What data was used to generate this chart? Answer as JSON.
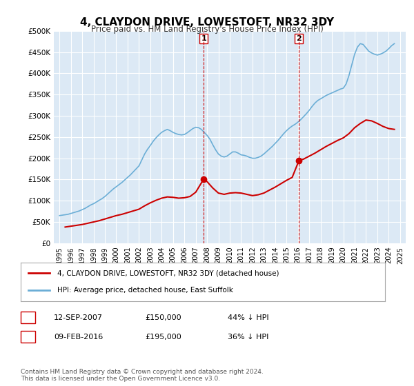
{
  "title": "4, CLAYDON DRIVE, LOWESTOFT, NR32 3DY",
  "subtitle": "Price paid vs. HM Land Registry's House Price Index (HPI)",
  "background_color": "#dce9f5",
  "plot_bg_color": "#dce9f5",
  "outer_bg_color": "#ffffff",
  "ylim": [
    0,
    500000
  ],
  "yticks": [
    0,
    50000,
    100000,
    150000,
    200000,
    250000,
    300000,
    350000,
    400000,
    450000,
    500000
  ],
  "ytick_labels": [
    "£0",
    "£50K",
    "£100K",
    "£150K",
    "£200K",
    "£250K",
    "£300K",
    "£350K",
    "£400K",
    "£450K",
    "£500K"
  ],
  "xlim_start": 1994.5,
  "xlim_end": 2025.5,
  "xticks": [
    1995,
    1996,
    1997,
    1998,
    1999,
    2000,
    2001,
    2002,
    2003,
    2004,
    2005,
    2006,
    2007,
    2008,
    2009,
    2010,
    2011,
    2012,
    2013,
    2014,
    2015,
    2016,
    2017,
    2018,
    2019,
    2020,
    2021,
    2022,
    2023,
    2024,
    2025
  ],
  "hpi_color": "#6baed6",
  "price_color": "#cc0000",
  "marker1_x": 2007.7,
  "marker1_y": 150000,
  "marker2_x": 2016.1,
  "marker2_y": 195000,
  "vline1_x": 2007.7,
  "vline2_x": 2016.1,
  "legend_house_label": "4, CLAYDON DRIVE, LOWESTOFT, NR32 3DY (detached house)",
  "legend_hpi_label": "HPI: Average price, detached house, East Suffolk",
  "annotation1_label": "1",
  "annotation1_date": "12-SEP-2007",
  "annotation1_price": "£150,000",
  "annotation1_pct": "44% ↓ HPI",
  "annotation2_label": "2",
  "annotation2_date": "09-FEB-2016",
  "annotation2_price": "£195,000",
  "annotation2_pct": "36% ↓ HPI",
  "footer": "Contains HM Land Registry data © Crown copyright and database right 2024.\nThis data is licensed under the Open Government Licence v3.0.",
  "hpi_data_x": [
    1995.0,
    1995.25,
    1995.5,
    1995.75,
    1996.0,
    1996.25,
    1996.5,
    1996.75,
    1997.0,
    1997.25,
    1997.5,
    1997.75,
    1998.0,
    1998.25,
    1998.5,
    1998.75,
    1999.0,
    1999.25,
    1999.5,
    1999.75,
    2000.0,
    2000.25,
    2000.5,
    2000.75,
    2001.0,
    2001.25,
    2001.5,
    2001.75,
    2002.0,
    2002.25,
    2002.5,
    2002.75,
    2003.0,
    2003.25,
    2003.5,
    2003.75,
    2004.0,
    2004.25,
    2004.5,
    2004.75,
    2005.0,
    2005.25,
    2005.5,
    2005.75,
    2006.0,
    2006.25,
    2006.5,
    2006.75,
    2007.0,
    2007.25,
    2007.5,
    2007.75,
    2008.0,
    2008.25,
    2008.5,
    2008.75,
    2009.0,
    2009.25,
    2009.5,
    2009.75,
    2010.0,
    2010.25,
    2010.5,
    2010.75,
    2011.0,
    2011.25,
    2011.5,
    2011.75,
    2012.0,
    2012.25,
    2012.5,
    2012.75,
    2013.0,
    2013.25,
    2013.5,
    2013.75,
    2014.0,
    2014.25,
    2014.5,
    2014.75,
    2015.0,
    2015.25,
    2015.5,
    2015.75,
    2016.0,
    2016.25,
    2016.5,
    2016.75,
    2017.0,
    2017.25,
    2017.5,
    2017.75,
    2018.0,
    2018.25,
    2018.5,
    2018.75,
    2019.0,
    2019.25,
    2019.5,
    2019.75,
    2020.0,
    2020.25,
    2020.5,
    2020.75,
    2021.0,
    2021.25,
    2021.5,
    2021.75,
    2022.0,
    2022.25,
    2022.5,
    2022.75,
    2023.0,
    2023.25,
    2023.5,
    2023.75,
    2024.0,
    2024.25,
    2024.5
  ],
  "hpi_data_y": [
    65000,
    66000,
    67000,
    68000,
    70000,
    72000,
    74000,
    76000,
    79000,
    82000,
    86000,
    90000,
    93000,
    97000,
    101000,
    105000,
    110000,
    116000,
    122000,
    128000,
    133000,
    138000,
    143000,
    149000,
    155000,
    161000,
    168000,
    175000,
    182000,
    196000,
    210000,
    221000,
    230000,
    240000,
    248000,
    255000,
    261000,
    265000,
    268000,
    265000,
    261000,
    258000,
    256000,
    255000,
    256000,
    260000,
    265000,
    270000,
    273000,
    272000,
    268000,
    261000,
    254000,
    245000,
    232000,
    220000,
    210000,
    205000,
    203000,
    205000,
    210000,
    215000,
    215000,
    212000,
    208000,
    207000,
    205000,
    202000,
    200000,
    200000,
    202000,
    205000,
    210000,
    216000,
    222000,
    228000,
    235000,
    242000,
    250000,
    258000,
    265000,
    271000,
    276000,
    280000,
    285000,
    291000,
    298000,
    305000,
    313000,
    322000,
    330000,
    336000,
    340000,
    344000,
    348000,
    351000,
    354000,
    357000,
    360000,
    363000,
    365000,
    375000,
    395000,
    420000,
    445000,
    462000,
    470000,
    468000,
    460000,
    452000,
    448000,
    445000,
    443000,
    445000,
    448000,
    452000,
    458000,
    465000,
    470000
  ],
  "price_data_x": [
    1995.5,
    1996.0,
    1996.5,
    1997.0,
    1997.5,
    1998.0,
    1998.5,
    1999.0,
    1999.5,
    2000.0,
    2000.5,
    2001.0,
    2001.5,
    2002.0,
    2002.5,
    2003.0,
    2003.5,
    2004.0,
    2004.5,
    2005.0,
    2005.5,
    2006.0,
    2006.5,
    2007.0,
    2007.5,
    2007.75,
    2008.0,
    2008.5,
    2009.0,
    2009.5,
    2010.0,
    2010.5,
    2011.0,
    2011.5,
    2012.0,
    2012.5,
    2013.0,
    2013.5,
    2014.0,
    2014.5,
    2015.0,
    2015.5,
    2016.1,
    2016.5,
    2017.0,
    2017.5,
    2018.0,
    2018.5,
    2019.0,
    2019.5,
    2020.0,
    2020.5,
    2021.0,
    2021.5,
    2022.0,
    2022.5,
    2023.0,
    2023.5,
    2024.0,
    2024.5
  ],
  "price_data_y": [
    38000,
    40000,
    42000,
    44000,
    47000,
    50000,
    53000,
    57000,
    61000,
    65000,
    68000,
    72000,
    76000,
    80000,
    88000,
    95000,
    101000,
    106000,
    109000,
    108000,
    106000,
    107000,
    110000,
    120000,
    142000,
    150000,
    145000,
    130000,
    118000,
    115000,
    118000,
    119000,
    118000,
    115000,
    112000,
    114000,
    118000,
    125000,
    132000,
    140000,
    148000,
    155000,
    195000,
    198000,
    205000,
    212000,
    220000,
    228000,
    235000,
    242000,
    248000,
    258000,
    272000,
    282000,
    290000,
    288000,
    282000,
    275000,
    270000,
    268000
  ]
}
